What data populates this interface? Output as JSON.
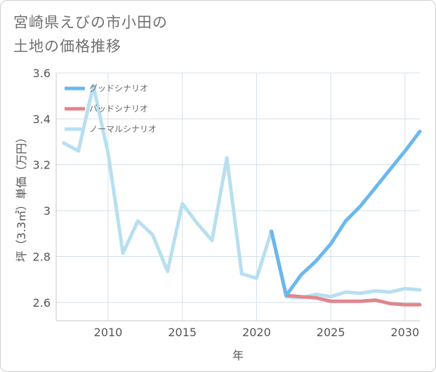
{
  "header": {
    "title_line1": "宮崎県えびの市小田の",
    "title_line2": "土地の価格推移"
  },
  "chart_data": {
    "type": "line",
    "title": "宮崎県えびの市小田の土地の価格推移",
    "xlabel": "年",
    "ylabel": "坪（3.3㎡）単価（万円）",
    "xlim": [
      2006.5,
      2031
    ],
    "ylim": [
      2.52,
      3.6
    ],
    "xticks": [
      2010,
      2015,
      2020,
      2025,
      2030
    ],
    "yticks": [
      2.6,
      2.8,
      3,
      3.2,
      3.4,
      3.6
    ],
    "xtick_labels": [
      "2010",
      "2015",
      "2020",
      "2025",
      "2030"
    ],
    "ytick_labels": [
      "2.6",
      "2.8",
      "3",
      "3.2",
      "3.4",
      "3.6"
    ],
    "grid": true,
    "legend_position": "top-left",
    "series": [
      {
        "name": "グッドシナリオ",
        "color": "#6ab8ee",
        "x": [
          2021,
          2022,
          2023,
          2024,
          2025,
          2026,
          2027,
          2028,
          2029,
          2030,
          2031
        ],
        "y": [
          2.91,
          2.63,
          2.72,
          2.78,
          2.855,
          2.955,
          3.02,
          3.1,
          3.18,
          3.26,
          3.345
        ]
      },
      {
        "name": "バッドシナリオ",
        "color": "#e0868e",
        "x": [
          2021,
          2022,
          2023,
          2024,
          2025,
          2026,
          2027,
          2028,
          2029,
          2030,
          2031
        ],
        "y": [
          2.91,
          2.63,
          2.625,
          2.62,
          2.605,
          2.605,
          2.605,
          2.61,
          2.595,
          2.59,
          2.59
        ]
      },
      {
        "name": "ノーマルシナリオ",
        "color": "#b8dff0",
        "x": [
          2007,
          2008,
          2009,
          2010,
          2011,
          2012,
          2013,
          2014,
          2015,
          2016,
          2017,
          2018,
          2019,
          2020,
          2021,
          2022,
          2023,
          2024,
          2025,
          2026,
          2027,
          2028,
          2029,
          2030,
          2031
        ],
        "y": [
          3.295,
          3.26,
          3.545,
          3.25,
          2.815,
          2.955,
          2.895,
          2.735,
          3.03,
          2.945,
          2.87,
          3.23,
          2.725,
          2.705,
          2.91,
          2.625,
          2.62,
          2.635,
          2.625,
          2.645,
          2.64,
          2.65,
          2.645,
          2.66,
          2.655
        ]
      }
    ]
  }
}
